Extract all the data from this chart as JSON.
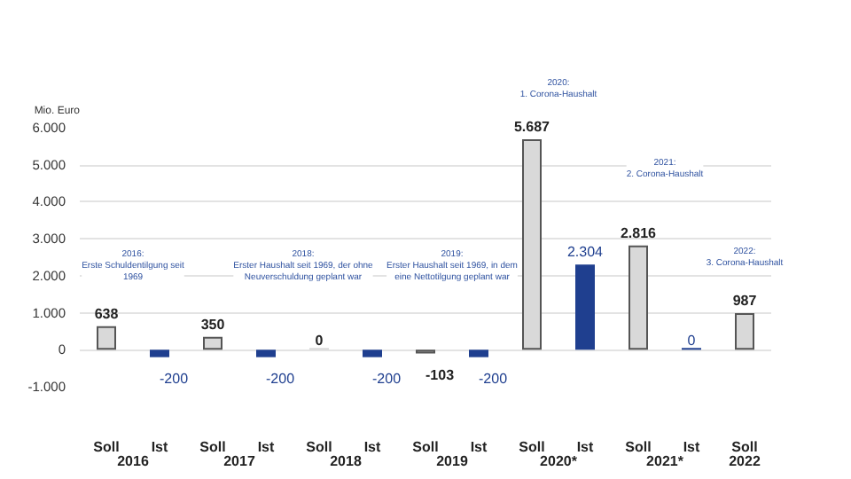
{
  "chart_data": {
    "type": "bar",
    "ylabel": "Mio. Euro",
    "categories": [
      "2016",
      "2017",
      "2018",
      "2019",
      "2020*",
      "2021*",
      "2022"
    ],
    "series": [
      {
        "name": "Soll",
        "color": "#d9d9d9",
        "values": [
          638,
          350,
          0,
          -103,
          5687,
          2816,
          987
        ],
        "value_labels": [
          "638",
          "350",
          "0",
          "-103",
          "5.687",
          "2.816",
          "987"
        ]
      },
      {
        "name": "Ist",
        "color": "#1f3f8f",
        "values": [
          -200,
          -200,
          -200,
          -200,
          2304,
          0,
          null
        ],
        "value_labels": [
          "-200",
          "-200",
          "-200",
          "-200",
          "2.304",
          "0",
          null
        ]
      }
    ],
    "ylim": [
      -1000,
      6000
    ],
    "yticks": [
      {
        "value": -1000,
        "label": "-1.000"
      },
      0,
      {
        "value": 1000,
        "label": "1.000"
      },
      {
        "value": 2000,
        "label": "2.000"
      },
      {
        "value": 3000,
        "label": "3.000"
      },
      {
        "value": 4000,
        "label": "4.000"
      },
      {
        "value": 5000,
        "label": "5.000"
      },
      {
        "value": 6000,
        "label": "6.000"
      }
    ],
    "grid": "y",
    "legend": false,
    "annotations": [
      "2016:\nErste Schuldentilgung seit\n1969",
      "2018:\nErster Haushalt seit 1969, der ohne\nNeuverschuldung geplant war",
      "2019:\nErster Haushalt seit 1969, in dem\neine Nettotilgung geplant war",
      "2020:\n1. Corona-Haushalt",
      "2021:\n2. Corona-Haushalt",
      "2022:\n3. Corona-Haushalt"
    ]
  }
}
